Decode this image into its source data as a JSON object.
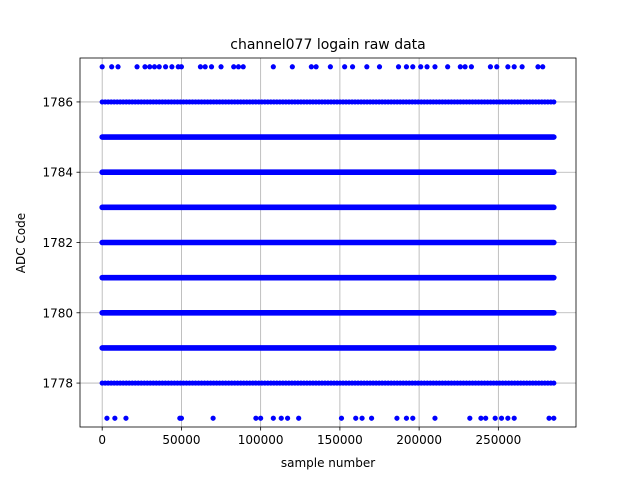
{
  "chart_data": {
    "type": "scatter",
    "title": "channel077 logain raw data",
    "xlabel": "sample number",
    "ylabel": "ADC Code",
    "xlim": [
      -14000,
      299000
    ],
    "ylim": [
      1776.75,
      1787.25
    ],
    "x_ticks": [
      0,
      50000,
      100000,
      150000,
      200000,
      250000
    ],
    "x_tick_labels": [
      "0",
      "50000",
      "100000",
      "150000",
      "200000",
      "250000"
    ],
    "y_ticks": [
      1778,
      1780,
      1782,
      1784,
      1786
    ],
    "y_tick_labels": [
      "1778",
      "1780",
      "1782",
      "1784",
      "1786"
    ],
    "grid": true,
    "marker_color": "#0000ff",
    "x_range": [
      0,
      285000
    ],
    "levels": [
      {
        "y": 1787,
        "coverage": "sparse",
        "x": [
          0,
          6000,
          10000,
          22000,
          27000,
          30000,
          33000,
          36000,
          40000,
          44000,
          48000,
          50000,
          62000,
          65000,
          69000,
          75000,
          83000,
          86000,
          89000,
          108000,
          120000,
          132000,
          135000,
          144000,
          153000,
          158000,
          167000,
          175000,
          187000,
          192000,
          196000,
          201000,
          205000,
          210000,
          218000,
          226000,
          229000,
          233000,
          245000,
          249000,
          256000,
          260000,
          265000,
          275000,
          278000
        ]
      },
      {
        "y": 1786,
        "coverage": "dense",
        "segments": [
          [
            0,
            285000
          ]
        ]
      },
      {
        "y": 1785,
        "coverage": "continuous",
        "segments": [
          [
            0,
            285000
          ]
        ]
      },
      {
        "y": 1784,
        "coverage": "continuous",
        "segments": [
          [
            0,
            285000
          ]
        ]
      },
      {
        "y": 1783,
        "coverage": "continuous",
        "segments": [
          [
            0,
            285000
          ]
        ]
      },
      {
        "y": 1782,
        "coverage": "continuous",
        "segments": [
          [
            0,
            285000
          ]
        ]
      },
      {
        "y": 1781,
        "coverage": "continuous",
        "segments": [
          [
            0,
            285000
          ]
        ]
      },
      {
        "y": 1780,
        "coverage": "continuous",
        "segments": [
          [
            0,
            285000
          ]
        ]
      },
      {
        "y": 1779,
        "coverage": "continuous",
        "segments": [
          [
            0,
            285000
          ]
        ]
      },
      {
        "y": 1778,
        "coverage": "dense",
        "segments": [
          [
            0,
            285000
          ]
        ]
      },
      {
        "y": 1777,
        "coverage": "sparse",
        "x": [
          3000,
          8000,
          15000,
          49000,
          50000,
          70000,
          97000,
          100000,
          108000,
          113000,
          117000,
          124000,
          151000,
          160000,
          164000,
          170000,
          186000,
          192000,
          196000,
          210000,
          232000,
          239000,
          242000,
          248000,
          252000,
          256000,
          260000,
          282000,
          285000
        ]
      }
    ]
  }
}
